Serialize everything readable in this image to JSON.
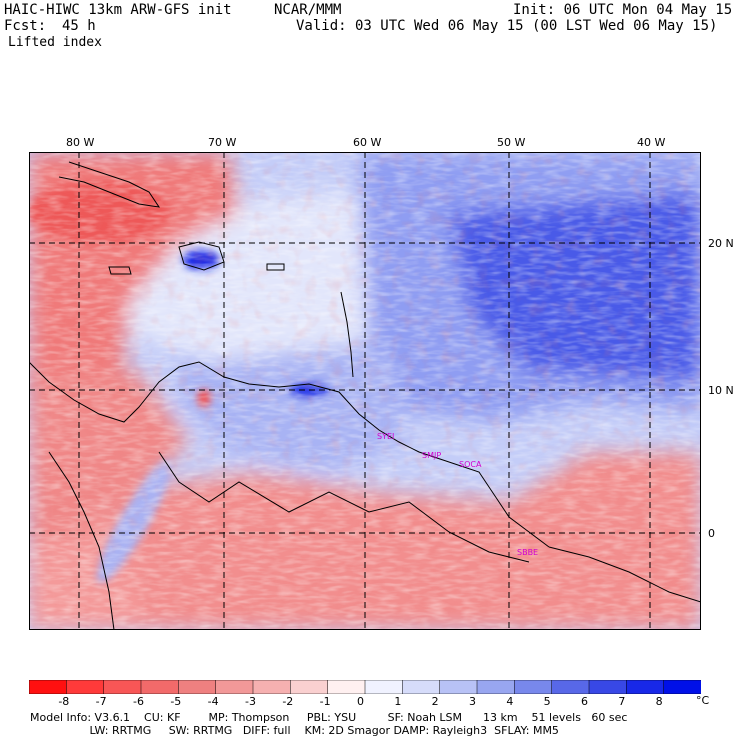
{
  "header": {
    "model": "HAIC-HIWC 13km ARW-GFS init",
    "org": "NCAR/MMM",
    "init": "Init: 06 UTC Mon 04 May 15",
    "fcst_label": "Fcst:",
    "fcst_value": "45 h",
    "valid": "Valid: 03 UTC Wed 06 May 15 (00 LST Wed 06 May 15)",
    "field": "Lifted index"
  },
  "map": {
    "lon_labels": [
      "80 W",
      "70 W",
      "60 W",
      "50 W",
      "40 W"
    ],
    "lat_labels": [
      "20 N",
      "10 N",
      "0"
    ],
    "stations": [
      "SYEI",
      "SMJP",
      "SOCA",
      "SBBE"
    ]
  },
  "colorbar": {
    "ticks": [
      "-8",
      "-7",
      "-6",
      "-5",
      "-4",
      "-3",
      "-2",
      "-1",
      "0",
      "1",
      "2",
      "3",
      "4",
      "5",
      "6",
      "7",
      "8"
    ],
    "unit": "°C",
    "colors": [
      "#ff1010",
      "#ff3a3a",
      "#f85656",
      "#f26a6a",
      "#ef8080",
      "#f29898",
      "#f6b0b0",
      "#fad0d0",
      "#fff0f0",
      "#f0f2ff",
      "#d6dcfa",
      "#b8c2f6",
      "#98a6f0",
      "#7888ec",
      "#5868e8",
      "#3848e6",
      "#1828e8",
      "#0010e8"
    ]
  },
  "footer": {
    "line1": "Model Info: V3.6.1    CU: KF        MP: Thompson     PBL: YSU         SF: Noah LSM      13 km    51 levels   60 sec",
    "line2": "                 LW: RRTMG     SW: RRTMG   DIFF: full    KM: 2D Smagor DAMP: Rayleigh3  SFLAY: MM5"
  }
}
